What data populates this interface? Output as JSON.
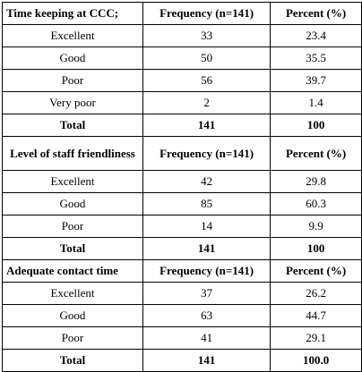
{
  "sections": [
    {
      "header": [
        "Time keeping at CCC;",
        "Frequency (n=141)",
        "Percent (%)"
      ],
      "rows": [
        [
          "Excellent",
          "33",
          "23.4"
        ],
        [
          "Good",
          "50",
          "35.5"
        ],
        [
          "Poor",
          "56",
          "39.7"
        ],
        [
          "Very poor",
          "2",
          "1.4"
        ]
      ],
      "total": [
        "Total",
        "141",
        "100"
      ]
    },
    {
      "header": [
        "Level of staff friendliness",
        "Frequency (n=141)",
        "Percent (%)"
      ],
      "rows": [
        [
          "Excellent",
          "42",
          "29.8"
        ],
        [
          "Good",
          "85",
          "60.3"
        ],
        [
          "Poor",
          "14",
          "9.9"
        ]
      ],
      "total": [
        "Total",
        "141",
        "100"
      ]
    },
    {
      "header": [
        "Adequate contact time",
        "Frequency (n=141)",
        "Percent (%)"
      ],
      "rows": [
        [
          "Excellent",
          "37",
          "26.2"
        ],
        [
          "Good",
          "63",
          "44.7"
        ],
        [
          "Poor",
          "41",
          "29.1"
        ]
      ],
      "total": [
        "Total",
        "141",
        "100.0"
      ]
    }
  ]
}
